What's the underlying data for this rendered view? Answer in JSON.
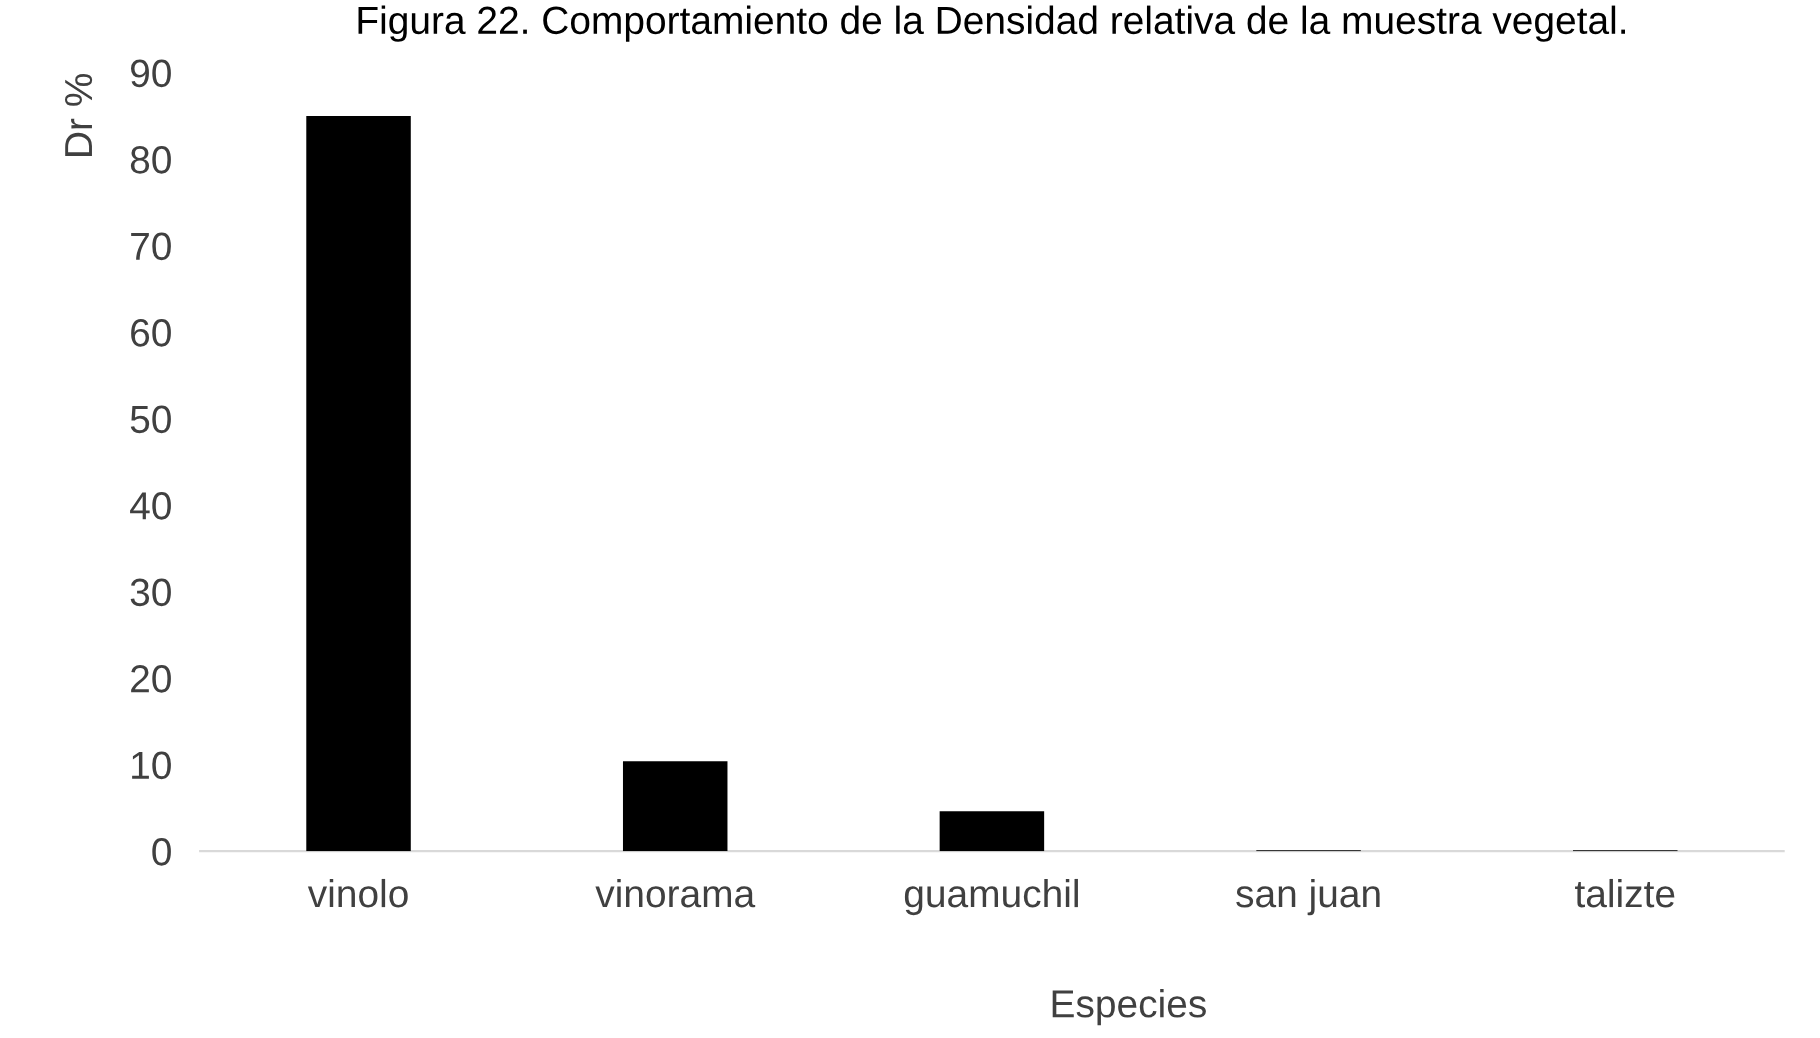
{
  "chart_data": {
    "type": "bar",
    "title": "Figura 22. Comportamiento de la Densidad relativa de la muestra vegetal.",
    "xlabel": "Especies",
    "ylabel": "Dr %",
    "categories": [
      "vinolo",
      "vinorama",
      "guamuchil",
      "san juan",
      "talizte"
    ],
    "values": [
      85,
      10.4,
      4.6,
      0.1,
      0.1
    ],
    "color": "#000000",
    "ylim": [
      0,
      90
    ],
    "yticks": [
      0,
      10,
      20,
      30,
      40,
      50,
      60,
      70,
      80,
      90
    ],
    "grid": false,
    "legend": false
  }
}
